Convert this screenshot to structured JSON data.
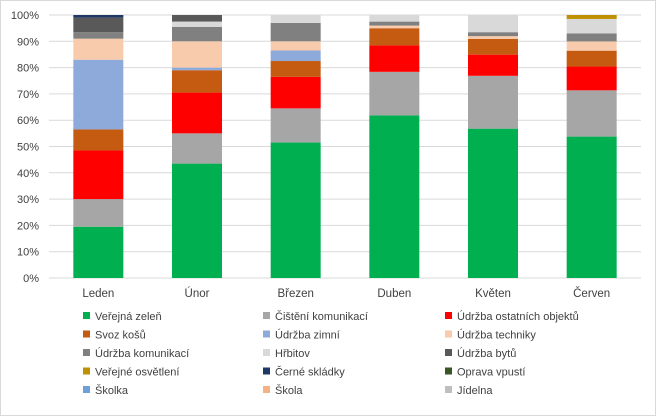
{
  "chart_data": {
    "type": "bar",
    "stacked": "percent",
    "title": "",
    "xlabel": "",
    "ylabel": "",
    "ylim": [
      0,
      100
    ],
    "yticks": [
      "0%",
      "10%",
      "20%",
      "30%",
      "40%",
      "50%",
      "60%",
      "70%",
      "80%",
      "90%",
      "100%"
    ],
    "grid": true,
    "legend_position": "bottom",
    "categories": [
      "Leden",
      "Únor",
      "Březen",
      "Duben",
      "Květen",
      "Červen"
    ],
    "series": [
      {
        "name": "Veřejná zeleň",
        "color": "#00b050",
        "values": [
          19.5,
          43.5,
          51.5,
          61.5,
          56.5,
          53.5
        ]
      },
      {
        "name": "Čištění komunikací",
        "color": "#a6a6a6",
        "values": [
          10.5,
          11.5,
          13,
          16.5,
          20,
          17.5
        ]
      },
      {
        "name": "Údržba ostatních objektů",
        "color": "#ff0000",
        "values": [
          18.5,
          15.5,
          12,
          10,
          8,
          9
        ]
      },
      {
        "name": "Svoz košů",
        "color": "#c55a11",
        "values": [
          8,
          8.5,
          6,
          6.5,
          6,
          6
        ]
      },
      {
        "name": "Údržba zimní",
        "color": "#8eaadb",
        "values": [
          26.5,
          1,
          4,
          0,
          0,
          0
        ]
      },
      {
        "name": "Údržba techniky",
        "color": "#f8cbad",
        "values": [
          8,
          10,
          3.5,
          1,
          1,
          3.5
        ]
      },
      {
        "name": "Údržba komunikací",
        "color": "#808080",
        "values": [
          2.5,
          5.5,
          7,
          1.5,
          1.5,
          3
        ]
      },
      {
        "name": "Hřbitov",
        "color": "#d9d9d9",
        "values": [
          0,
          2,
          3,
          2.5,
          6.5,
          5.5
        ]
      },
      {
        "name": "Údržba bytů",
        "color": "#595959",
        "values": [
          5.5,
          2.5,
          0,
          0,
          0,
          0
        ]
      },
      {
        "name": "Veřejné osvětlení",
        "color": "#bf9000",
        "values": [
          0,
          0,
          0,
          0,
          0,
          1.5
        ]
      },
      {
        "name": "Černé skládky",
        "color": "#1f3864",
        "values": [
          1,
          0,
          0,
          0,
          0,
          0
        ]
      },
      {
        "name": "Oprava vpustí",
        "color": "#375623",
        "values": [
          0,
          0,
          0,
          0,
          0,
          0
        ]
      },
      {
        "name": "Školka",
        "color": "#6f9fd8",
        "values": [
          0,
          0,
          0,
          0,
          0,
          0
        ]
      },
      {
        "name": "Škola",
        "color": "#f4b183",
        "values": [
          0,
          0,
          0,
          0,
          0,
          0
        ]
      },
      {
        "name": "Jídelna",
        "color": "#bfbfbf",
        "values": [
          0,
          0,
          0,
          0,
          0,
          0
        ]
      }
    ]
  }
}
